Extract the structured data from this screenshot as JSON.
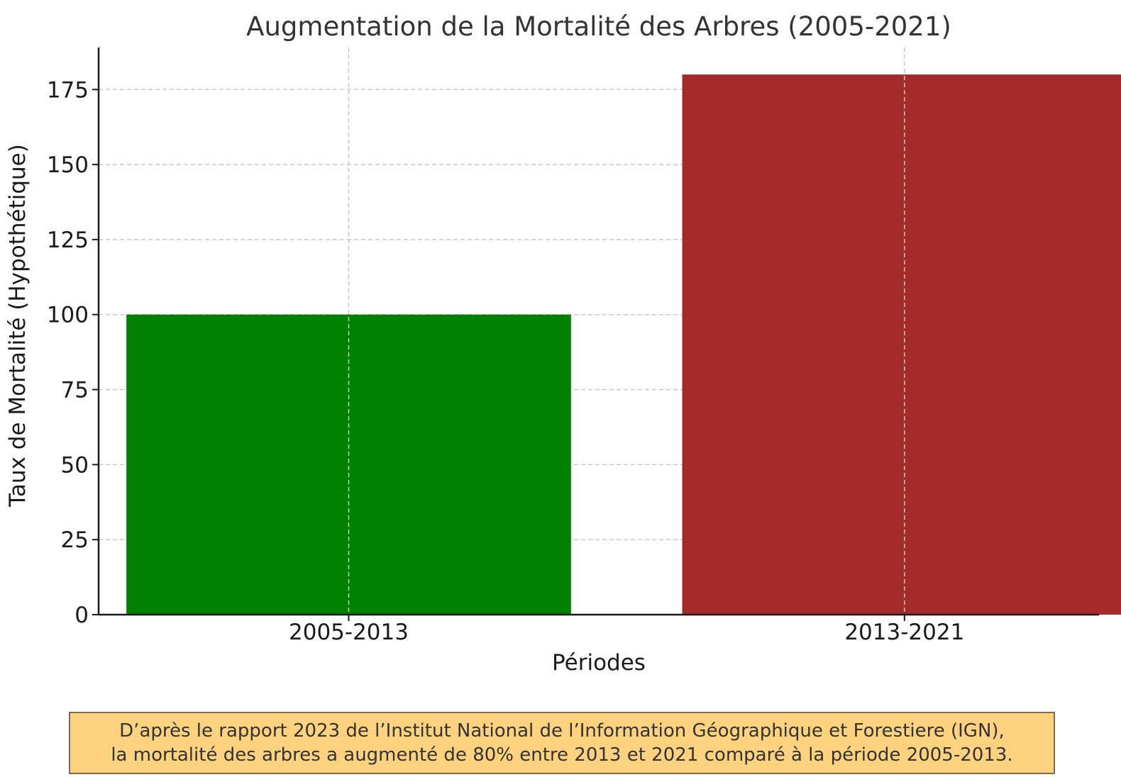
{
  "chart_data": {
    "type": "bar",
    "title": "Augmentation de la Mortalité des Arbres (2005-2021)",
    "xlabel": "Périodes",
    "ylabel": "Taux de Mortalité (Hypothétique)",
    "categories": [
      "2005-2013",
      "2013-2021"
    ],
    "values": [
      100,
      180
    ],
    "colors": [
      "#008000",
      "#a52a2a"
    ],
    "ylim": [
      0,
      189
    ],
    "yticks": [
      0,
      25,
      50,
      75,
      100,
      125,
      150,
      175
    ],
    "grid": true
  },
  "note": {
    "line1": "D’après le rapport 2023 de l’Institut National de l’Information Géographique et Forestiere (IGN),",
    "line2": "la mortalité des arbres a augmenté de 80% entre 2013 et 2021 comparé à la période 2005-2013."
  }
}
